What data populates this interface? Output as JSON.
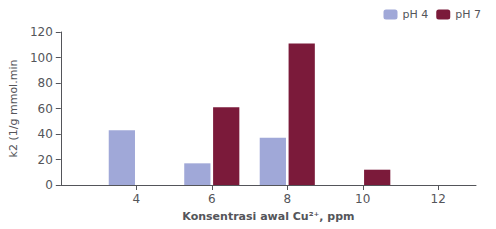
{
  "chart_data": {
    "type": "bar",
    "x": [
      4,
      6,
      8,
      10
    ],
    "series": [
      {
        "name": "pH 4",
        "color": "#a0a8d8",
        "values": [
          43,
          17,
          37,
          0
        ]
      },
      {
        "name": "pH 7",
        "color": "#7b1a3a",
        "values": [
          0,
          61,
          111,
          12
        ]
      }
    ],
    "xlabel": "Konsentrasi awal Cu²⁺, ppm",
    "ylabel": "k2 (1/g mmol.min",
    "xlim": [
      2,
      13
    ],
    "xticks": [
      4,
      6,
      8,
      10,
      12
    ],
    "ylim": [
      0,
      120
    ],
    "yticks": [
      0,
      20,
      40,
      60,
      80,
      100,
      120
    ],
    "legend": "upper right",
    "grid": false
  }
}
